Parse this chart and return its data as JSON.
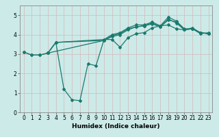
{
  "xlabel": "Humidex (Indice chaleur)",
  "bg_color": "#cceae8",
  "grid_color": "#aacccc",
  "line_color": "#1a7a6e",
  "xlim": [
    -0.5,
    23.5
  ],
  "ylim": [
    0,
    5.5
  ],
  "xticks": [
    0,
    1,
    2,
    3,
    4,
    5,
    6,
    7,
    8,
    9,
    10,
    11,
    12,
    13,
    14,
    15,
    16,
    17,
    18,
    19,
    20,
    21,
    22,
    23
  ],
  "yticks": [
    0,
    1,
    2,
    3,
    4,
    5
  ],
  "line1_x": [
    0,
    1,
    2,
    3,
    4,
    5,
    6,
    7,
    8,
    9,
    10,
    11,
    12,
    13,
    14,
    15,
    16,
    17,
    18,
    19,
    20,
    21,
    22,
    23
  ],
  "line1_y": [
    3.1,
    2.95,
    2.95,
    3.05,
    3.6,
    1.2,
    0.65,
    0.6,
    2.5,
    2.4,
    3.75,
    3.75,
    3.35,
    3.85,
    4.05,
    4.1,
    4.35,
    4.45,
    4.5,
    4.3,
    4.25,
    4.35,
    4.1,
    4.05
  ],
  "line2_x": [
    0,
    1,
    2,
    3,
    4,
    10,
    11,
    12,
    13,
    14,
    15,
    16,
    17,
    18,
    19,
    20,
    21,
    22,
    23
  ],
  "line2_y": [
    3.1,
    2.95,
    2.95,
    3.05,
    3.6,
    3.75,
    4.0,
    4.1,
    4.35,
    4.5,
    4.5,
    4.65,
    4.45,
    4.9,
    4.7,
    4.3,
    4.3,
    4.1,
    4.05
  ],
  "line3_x": [
    3,
    10,
    11,
    12,
    13,
    14,
    15,
    16,
    17,
    18,
    19,
    20,
    21,
    22,
    23
  ],
  "line3_y": [
    3.05,
    3.7,
    3.95,
    4.05,
    4.3,
    4.4,
    4.45,
    4.55,
    4.4,
    4.75,
    4.65,
    4.25,
    4.3,
    4.05,
    4.1
  ],
  "line4_x": [
    3,
    4,
    10,
    11,
    12,
    13,
    14,
    15,
    16,
    17,
    18,
    19,
    20,
    21,
    22,
    23
  ],
  "line4_y": [
    3.05,
    3.6,
    3.7,
    3.9,
    4.0,
    4.25,
    4.4,
    4.45,
    4.6,
    4.4,
    4.8,
    4.6,
    4.25,
    4.3,
    4.1,
    4.05
  ]
}
